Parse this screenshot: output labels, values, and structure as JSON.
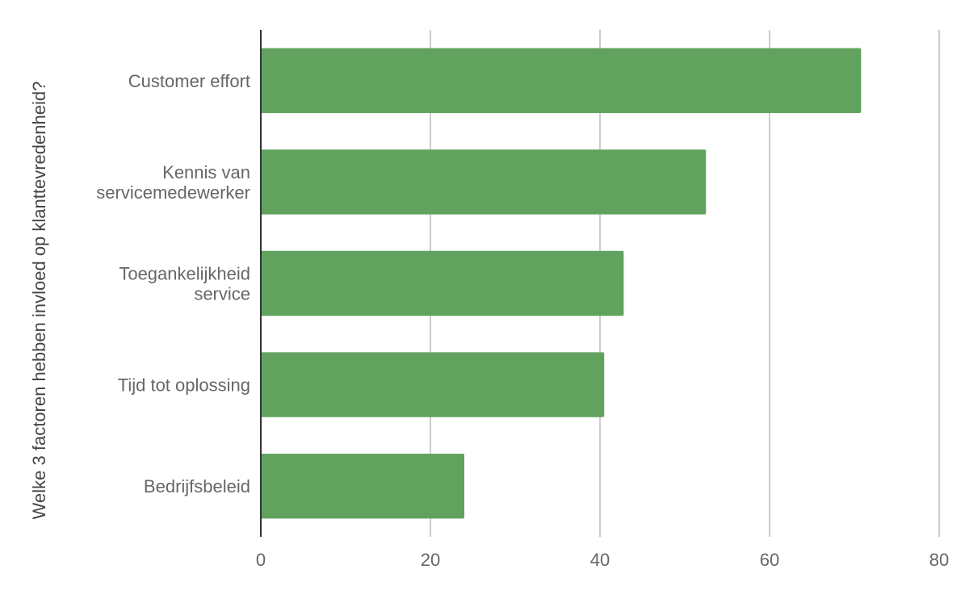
{
  "chart_data": {
    "type": "bar",
    "orientation": "horizontal",
    "ylabel": "Welke 3 factoren hebben invloed op klanttevredenheid?",
    "xlabel": "",
    "categories": [
      [
        "Customer effort"
      ],
      [
        "Kennis van",
        "servicemedewerker"
      ],
      [
        "Toegankelijkheid",
        "service"
      ],
      [
        "Tijd tot oplossing"
      ],
      [
        "Bedrijfsbeleid"
      ]
    ],
    "values": [
      70.8,
      52.5,
      42.8,
      40.5,
      24.0
    ],
    "xlim": [
      0,
      80
    ],
    "ticks": [
      0,
      20,
      40,
      60,
      80
    ],
    "tick_labels": [
      "0",
      "20",
      "40",
      "60",
      "80"
    ],
    "grid": true,
    "legend": "none",
    "bar_color": "#62a25f"
  }
}
